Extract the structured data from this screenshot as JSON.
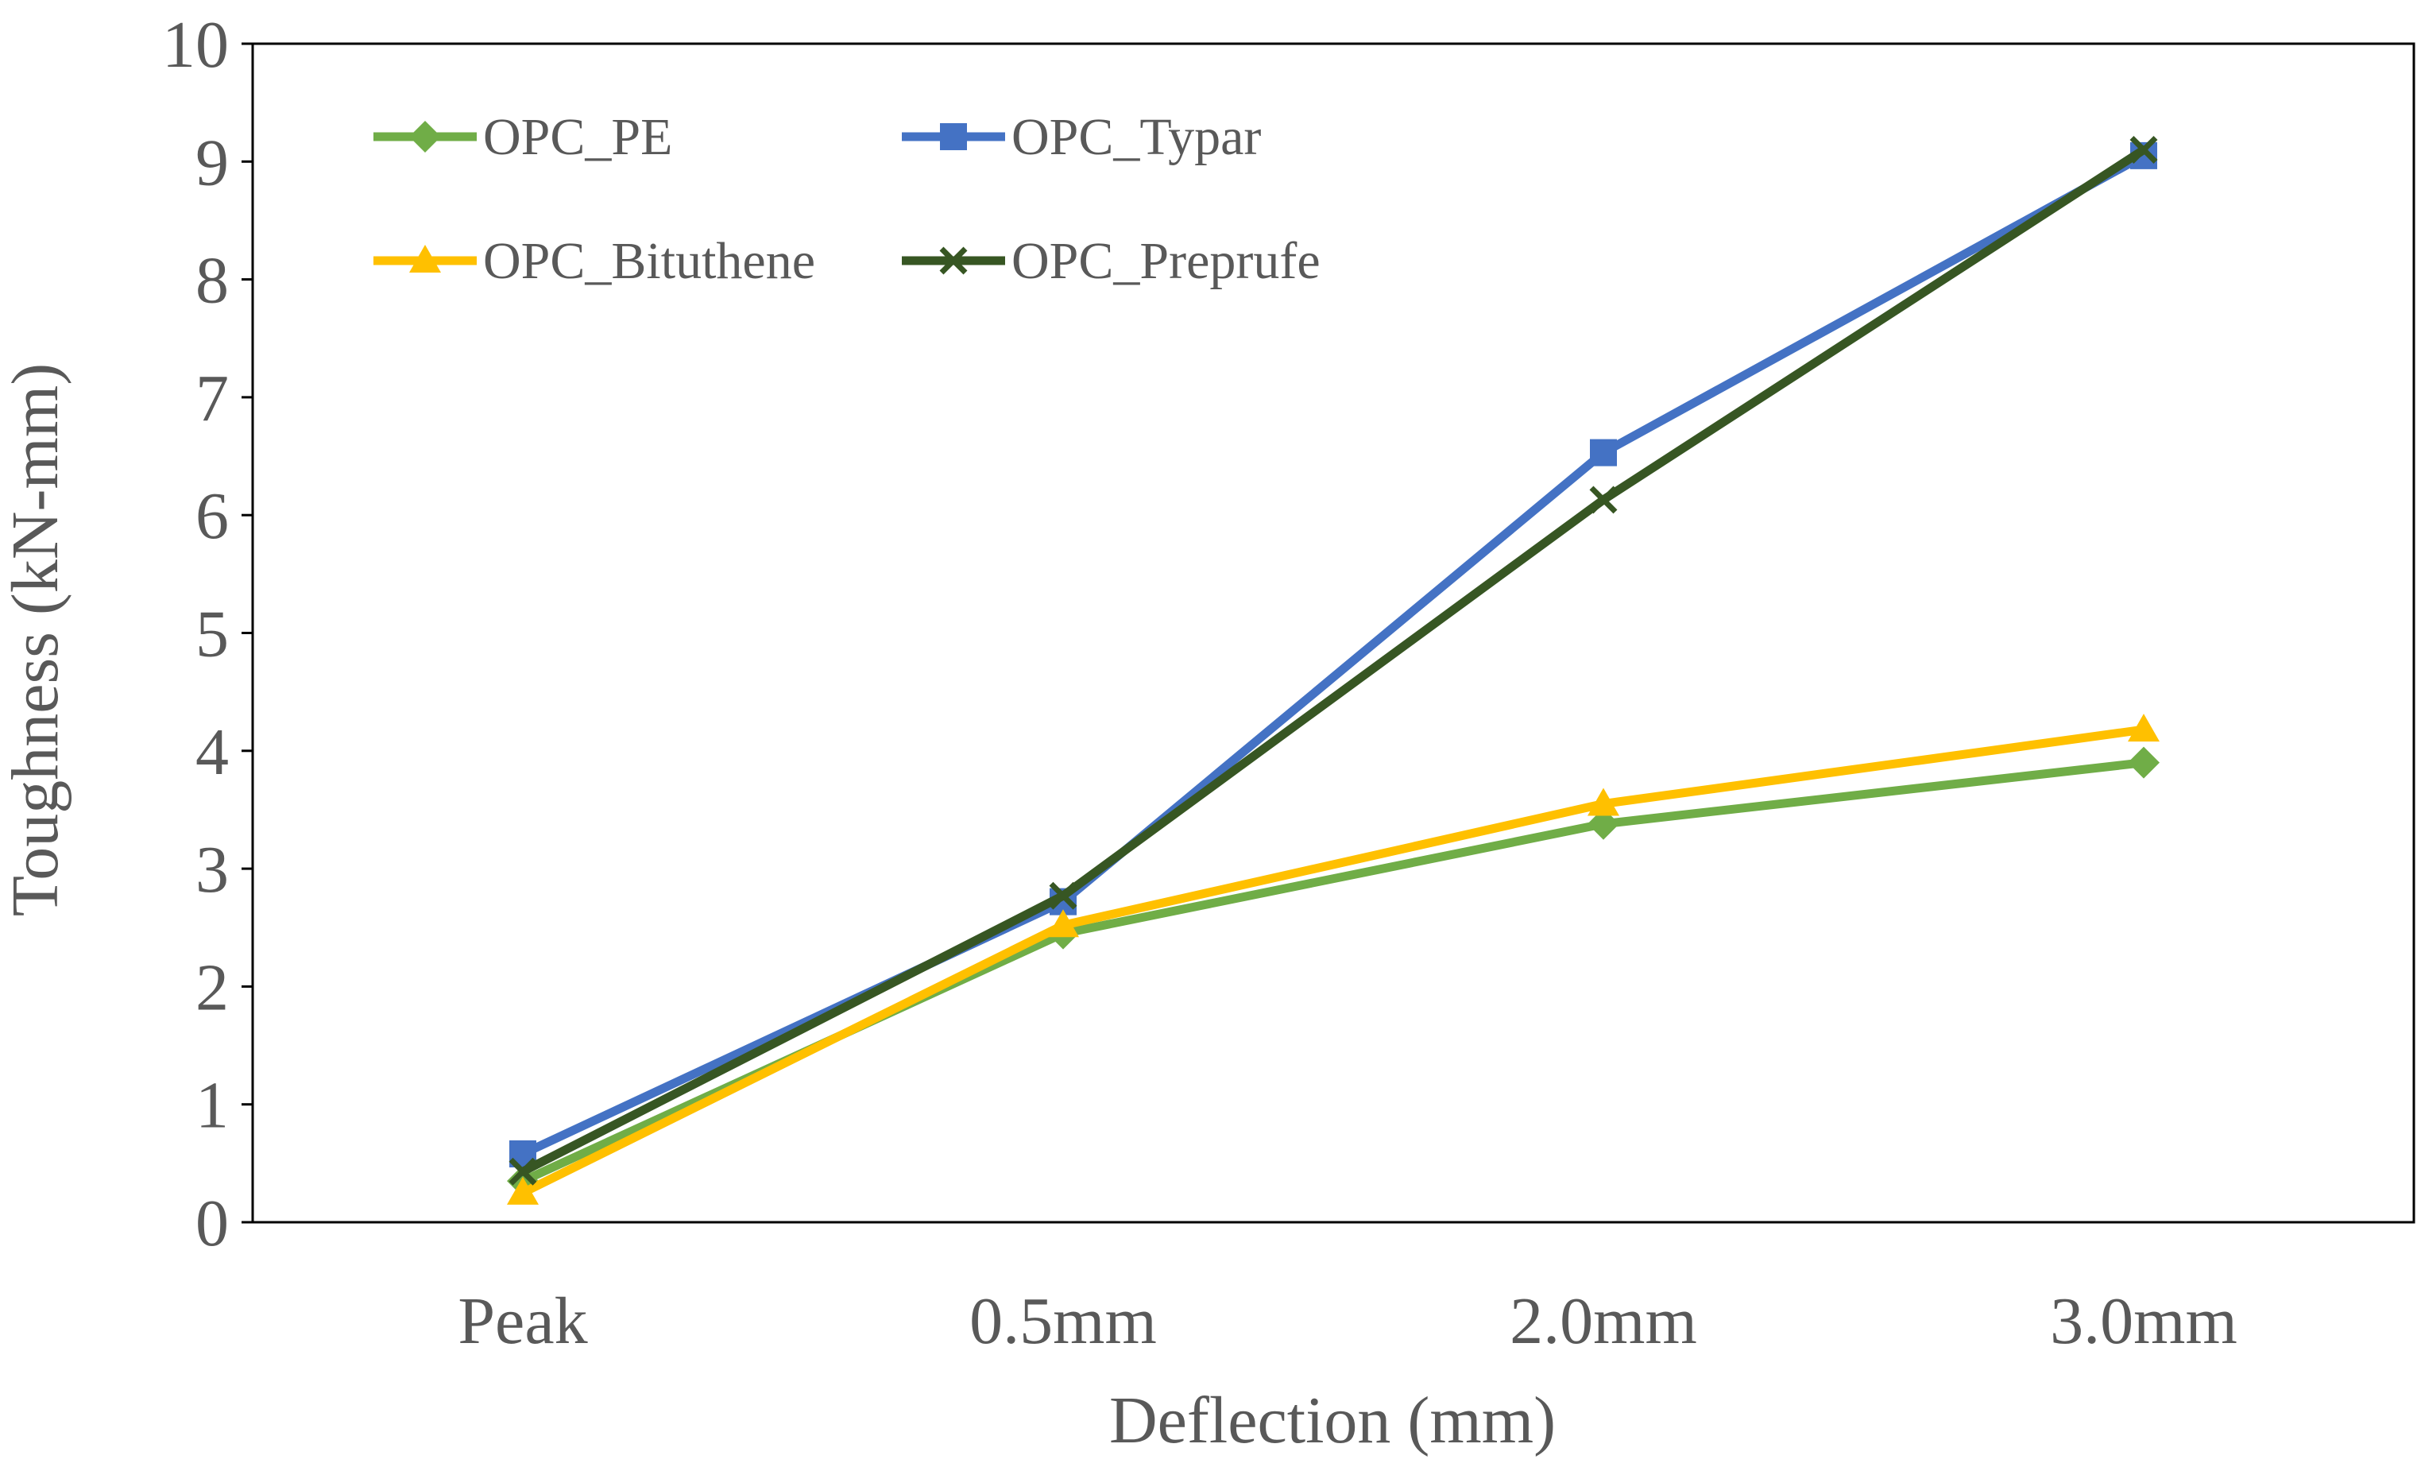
{
  "chart_data": {
    "type": "line",
    "title": "",
    "xlabel": "Deflection (mm)",
    "ylabel": "Toughness (kN-mm)",
    "categories": [
      "Peak",
      "0.5mm",
      "2.0mm",
      "3.0mm"
    ],
    "ylim": [
      0,
      10
    ],
    "yticks": [
      0,
      1,
      2,
      3,
      4,
      5,
      6,
      7,
      8,
      9,
      10
    ],
    "grid": false,
    "legend": "top-left",
    "series": [
      {
        "name": "OPC_PE",
        "color": "#70AD47",
        "marker": "diamond",
        "values": [
          0.35,
          2.45,
          3.38,
          3.9
        ]
      },
      {
        "name": "OPC_Typar",
        "color": "#4472C4",
        "marker": "square",
        "values": [
          0.58,
          2.72,
          6.53,
          9.05
        ]
      },
      {
        "name": "OPC_Bituthene",
        "color": "#FFC000",
        "marker": "triangle",
        "values": [
          0.25,
          2.52,
          3.55,
          4.18
        ]
      },
      {
        "name": "OPC_Preprufe",
        "color": "#375623",
        "marker": "x",
        "values": [
          0.43,
          2.77,
          6.13,
          9.1
        ]
      }
    ]
  }
}
